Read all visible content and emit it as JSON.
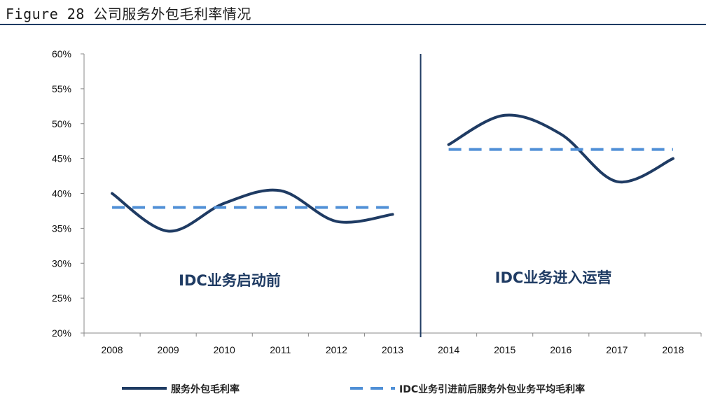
{
  "header": {
    "title": "Figure 28 公司服务外包毛利率情况"
  },
  "colors": {
    "actual": "#1f3b63",
    "average": "#4f8fd6",
    "rule": "#1f3b63"
  },
  "chart_data": {
    "type": "line",
    "categories": [
      "2008",
      "2009",
      "2010",
      "2011",
      "2012",
      "2013",
      "2014",
      "2015",
      "2016",
      "2017",
      "2018"
    ],
    "ylim": [
      20,
      60
    ],
    "yticks": [
      20,
      25,
      30,
      35,
      40,
      45,
      50,
      55,
      60
    ],
    "ytick_labels": [
      "20%",
      "25%",
      "30%",
      "35%",
      "40%",
      "45%",
      "50%",
      "55%",
      "60%"
    ],
    "series": [
      {
        "name": "服务外包毛利率",
        "style": "solid",
        "segments": [
          {
            "x": [
              "2008",
              "2009",
              "2010",
              "2011",
              "2012",
              "2013"
            ],
            "values": [
              40.0,
              34.6,
              38.6,
              40.4,
              36.0,
              37.0
            ]
          },
          {
            "x": [
              "2014",
              "2015",
              "2016",
              "2017",
              "2018"
            ],
            "values": [
              47.0,
              51.2,
              48.5,
              41.7,
              45.0
            ]
          }
        ]
      },
      {
        "name": "IDC业务引进前后服务外包业务平均毛利率",
        "style": "dashed",
        "segments": [
          {
            "x": [
              "2008",
              "2013"
            ],
            "values": [
              38.0,
              38.0
            ]
          },
          {
            "x": [
              "2014",
              "2018"
            ],
            "values": [
              46.3,
              46.3
            ]
          }
        ]
      }
    ],
    "annotations": [
      {
        "text": "IDC业务启动前",
        "region": "left"
      },
      {
        "text": "IDC业务进入运营",
        "region": "right"
      }
    ],
    "legend": {
      "placement": "bottom",
      "entries": [
        "服务外包毛利率",
        "IDC业务引进前后服务外包业务平均毛利率"
      ]
    }
  }
}
